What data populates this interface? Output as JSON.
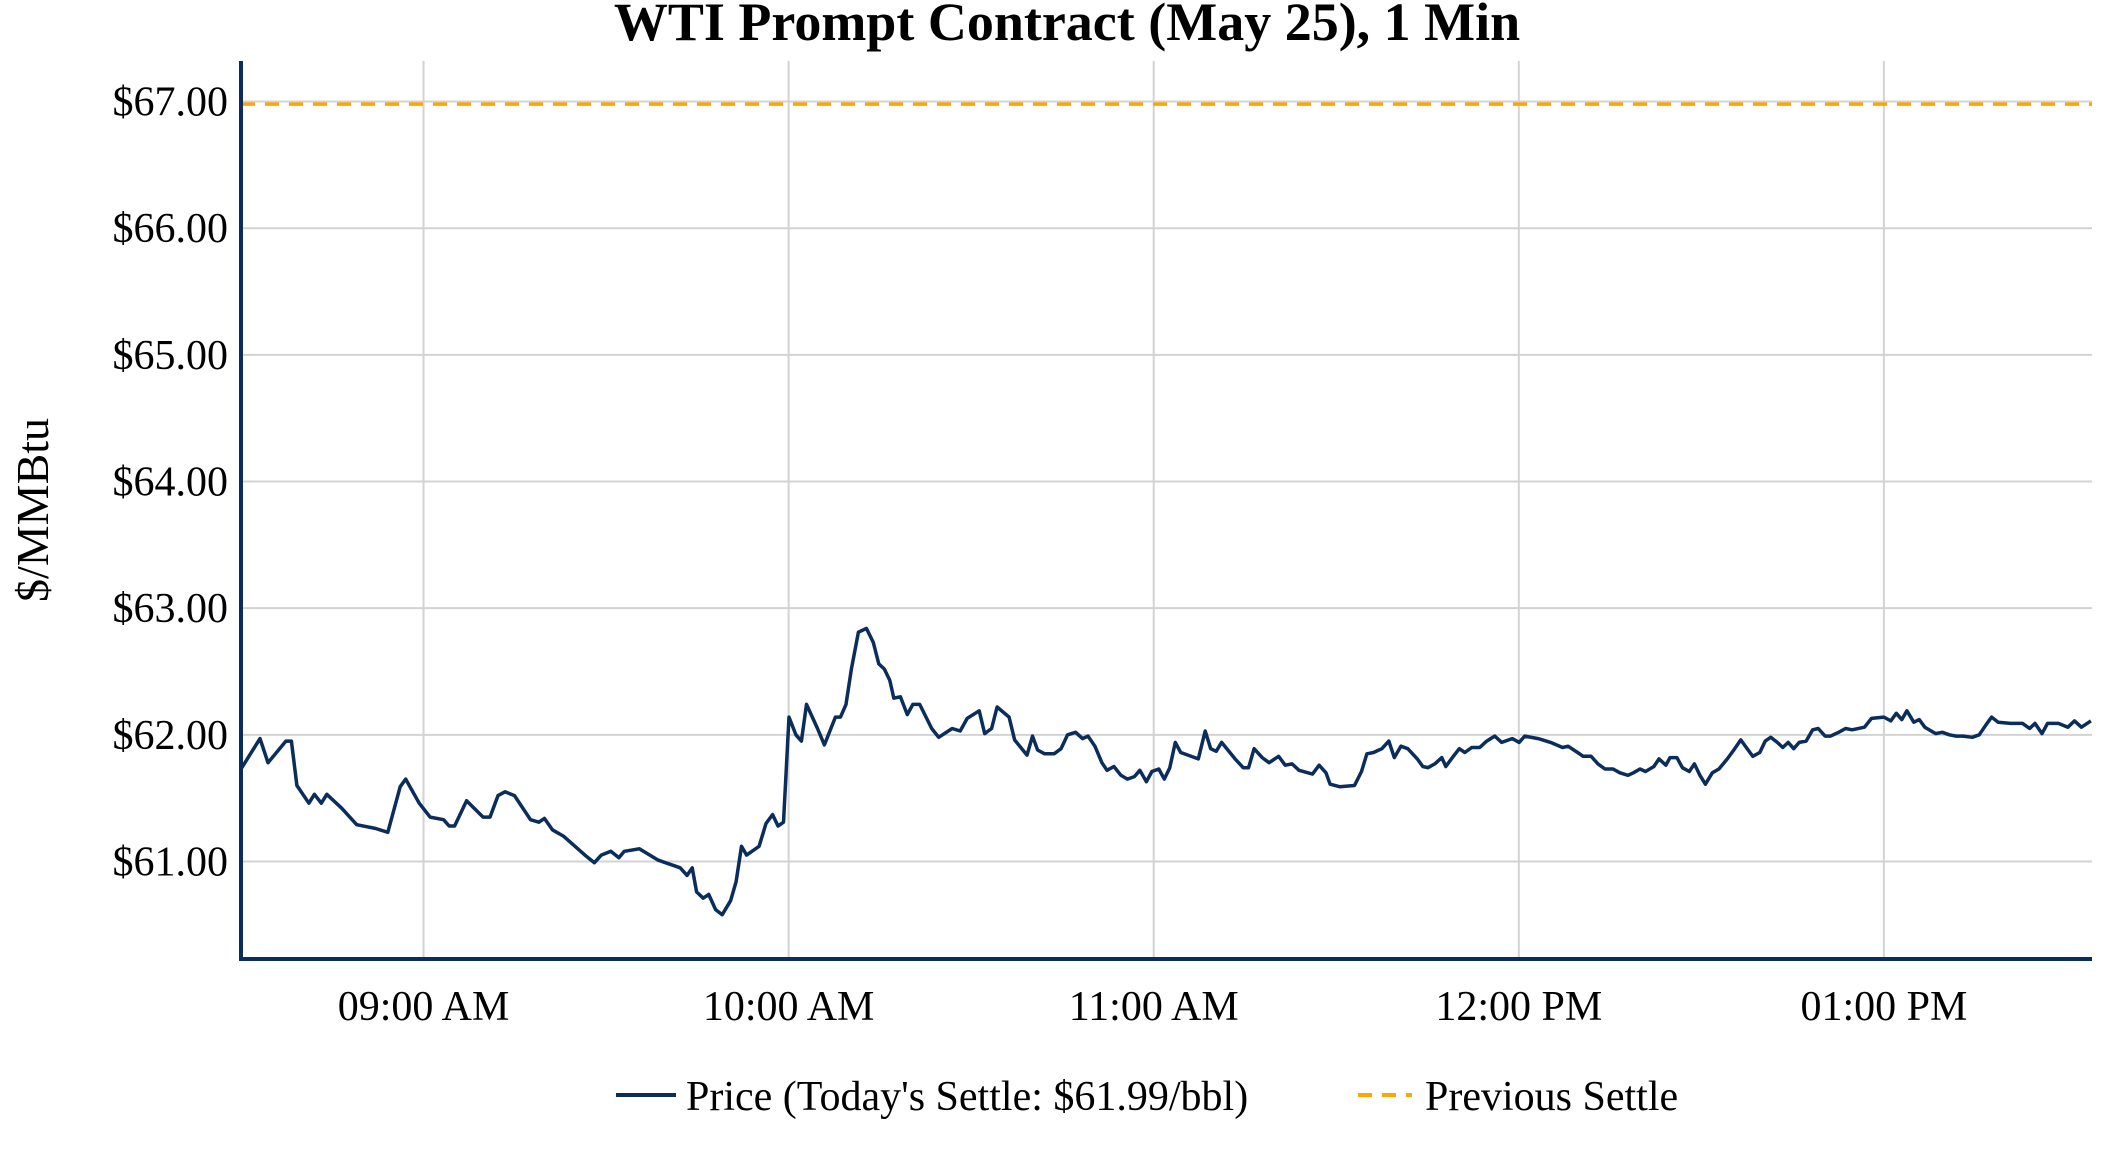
{
  "chart_data": {
    "type": "line",
    "title": "WTI Prompt Contract (May 25), 1 Min",
    "xlabel": "",
    "ylabel": "$/MMBtu",
    "x_unit": "hour of day (decimal)",
    "xlim": [
      8.5,
      13.57
    ],
    "ylim": [
      60.23,
      67.32
    ],
    "grid": true,
    "legend_position": "bottom",
    "x_ticks": [
      {
        "value": 9,
        "label": "09:00 AM"
      },
      {
        "value": 10,
        "label": "10:00 AM"
      },
      {
        "value": 11,
        "label": "11:00 AM"
      },
      {
        "value": 12,
        "label": "12:00 PM"
      },
      {
        "value": 13,
        "label": "01:00 PM"
      }
    ],
    "y_ticks": [
      {
        "value": 61,
        "label": "$61.00"
      },
      {
        "value": 62,
        "label": "$62.00"
      },
      {
        "value": 63,
        "label": "$63.00"
      },
      {
        "value": 64,
        "label": "$64.00"
      },
      {
        "value": 65,
        "label": "$65.00"
      },
      {
        "value": 66,
        "label": "$66.00"
      },
      {
        "value": 67,
        "label": "$67.00"
      }
    ],
    "series": [
      {
        "name": "Price (Today's Settle: $61.99/bbl)",
        "color": "#0b2d5b",
        "style": "solid",
        "points": [
          [
            8.5,
            61.73
          ],
          [
            8.552,
            61.97
          ],
          [
            8.574,
            61.78
          ],
          [
            8.623,
            61.95
          ],
          [
            8.638,
            61.95
          ],
          [
            8.653,
            61.6
          ],
          [
            8.686,
            61.46
          ],
          [
            8.701,
            61.53
          ],
          [
            8.72,
            61.46
          ],
          [
            8.735,
            61.53
          ],
          [
            8.776,
            61.42
          ],
          [
            8.817,
            61.29
          ],
          [
            8.869,
            61.26
          ],
          [
            8.902,
            61.23
          ],
          [
            8.936,
            61.59
          ],
          [
            8.951,
            61.65
          ],
          [
            8.988,
            61.46
          ],
          [
            9.018,
            61.35
          ],
          [
            9.055,
            61.33
          ],
          [
            9.07,
            61.28
          ],
          [
            9.085,
            61.28
          ],
          [
            9.118,
            61.48
          ],
          [
            9.163,
            61.35
          ],
          [
            9.182,
            61.35
          ],
          [
            9.204,
            61.52
          ],
          [
            9.223,
            61.55
          ],
          [
            9.249,
            61.52
          ],
          [
            9.293,
            61.33
          ],
          [
            9.316,
            61.31
          ],
          [
            9.331,
            61.34
          ],
          [
            9.353,
            61.25
          ],
          [
            9.383,
            61.2
          ],
          [
            9.442,
            61.05
          ],
          [
            9.468,
            60.99
          ],
          [
            9.487,
            61.05
          ],
          [
            9.513,
            61.08
          ],
          [
            9.535,
            61.03
          ],
          [
            9.55,
            61.08
          ],
          [
            9.591,
            61.1
          ],
          [
            9.643,
            61.01
          ],
          [
            9.703,
            60.95
          ],
          [
            9.722,
            60.89
          ],
          [
            9.736,
            60.95
          ],
          [
            9.748,
            60.76
          ],
          [
            9.766,
            60.71
          ],
          [
            9.781,
            60.74
          ],
          [
            9.8,
            60.62
          ],
          [
            9.818,
            60.58
          ],
          [
            9.841,
            60.69
          ],
          [
            9.856,
            60.84
          ],
          [
            9.871,
            61.12
          ],
          [
            9.885,
            61.05
          ],
          [
            9.919,
            61.12
          ],
          [
            9.938,
            61.3
          ],
          [
            9.956,
            61.37
          ],
          [
            9.971,
            61.28
          ],
          [
            9.986,
            61.31
          ],
          [
            10.001,
            62.14
          ],
          [
            10.02,
            62.0
          ],
          [
            10.035,
            61.95
          ],
          [
            10.049,
            62.24
          ],
          [
            10.079,
            62.05
          ],
          [
            10.098,
            61.92
          ],
          [
            10.128,
            62.14
          ],
          [
            10.142,
            62.14
          ],
          [
            10.157,
            62.24
          ],
          [
            10.172,
            62.52
          ],
          [
            10.191,
            62.81
          ],
          [
            10.213,
            62.84
          ],
          [
            10.232,
            62.73
          ],
          [
            10.247,
            62.56
          ],
          [
            10.262,
            62.52
          ],
          [
            10.277,
            62.43
          ],
          [
            10.288,
            62.29
          ],
          [
            10.306,
            62.3
          ],
          [
            10.325,
            62.16
          ],
          [
            10.34,
            62.24
          ],
          [
            10.359,
            62.24
          ],
          [
            10.373,
            62.16
          ],
          [
            10.392,
            62.05
          ],
          [
            10.411,
            61.98
          ],
          [
            10.448,
            62.05
          ],
          [
            10.47,
            62.03
          ],
          [
            10.489,
            62.13
          ],
          [
            10.522,
            62.19
          ],
          [
            10.537,
            62.01
          ],
          [
            10.556,
            62.05
          ],
          [
            10.571,
            62.22
          ],
          [
            10.604,
            62.14
          ],
          [
            10.619,
            61.96
          ],
          [
            10.653,
            61.84
          ],
          [
            10.668,
            61.99
          ],
          [
            10.682,
            61.88
          ],
          [
            10.701,
            61.85
          ],
          [
            10.727,
            61.85
          ],
          [
            10.746,
            61.89
          ],
          [
            10.764,
            62.0
          ],
          [
            10.786,
            62.02
          ],
          [
            10.805,
            61.97
          ],
          [
            10.82,
            61.99
          ],
          [
            10.839,
            61.91
          ],
          [
            10.858,
            61.78
          ],
          [
            10.872,
            61.72
          ],
          [
            10.891,
            61.75
          ],
          [
            10.91,
            61.68
          ],
          [
            10.928,
            61.65
          ],
          [
            10.947,
            61.67
          ],
          [
            10.962,
            61.72
          ],
          [
            10.98,
            61.63
          ],
          [
            10.995,
            61.71
          ],
          [
            11.014,
            61.73
          ],
          [
            11.029,
            61.65
          ],
          [
            11.044,
            61.74
          ],
          [
            11.059,
            61.94
          ],
          [
            11.074,
            61.86
          ],
          [
            11.122,
            61.81
          ],
          [
            11.141,
            62.03
          ],
          [
            11.156,
            61.89
          ],
          [
            11.171,
            61.87
          ],
          [
            11.186,
            61.94
          ],
          [
            11.223,
            61.81
          ],
          [
            11.245,
            61.74
          ],
          [
            11.26,
            61.74
          ],
          [
            11.275,
            61.89
          ],
          [
            11.297,
            61.82
          ],
          [
            11.316,
            61.78
          ],
          [
            11.342,
            61.83
          ],
          [
            11.36,
            61.76
          ],
          [
            11.379,
            61.77
          ],
          [
            11.398,
            61.72
          ],
          [
            11.435,
            61.69
          ],
          [
            11.453,
            61.76
          ],
          [
            11.472,
            61.7
          ],
          [
            11.483,
            61.61
          ],
          [
            11.509,
            61.59
          ],
          [
            11.55,
            61.6
          ],
          [
            11.569,
            61.71
          ],
          [
            11.584,
            61.85
          ],
          [
            11.602,
            61.86
          ],
          [
            11.625,
            61.89
          ],
          [
            11.644,
            61.95
          ],
          [
            11.659,
            61.82
          ],
          [
            11.677,
            61.91
          ],
          [
            11.696,
            61.89
          ],
          [
            11.722,
            61.81
          ],
          [
            11.737,
            61.75
          ],
          [
            11.751,
            61.74
          ],
          [
            11.77,
            61.77
          ],
          [
            11.789,
            61.82
          ],
          [
            11.8,
            61.75
          ],
          [
            11.818,
            61.82
          ],
          [
            11.837,
            61.89
          ],
          [
            11.852,
            61.86
          ],
          [
            11.871,
            61.9
          ],
          [
            11.893,
            61.9
          ],
          [
            11.912,
            61.95
          ],
          [
            11.934,
            61.99
          ],
          [
            11.953,
            61.94
          ],
          [
            11.982,
            61.97
          ],
          [
            12.001,
            61.94
          ],
          [
            12.016,
            61.99
          ],
          [
            12.053,
            61.97
          ],
          [
            12.087,
            61.94
          ],
          [
            12.12,
            61.9
          ],
          [
            12.135,
            61.91
          ],
          [
            12.161,
            61.86
          ],
          [
            12.176,
            61.83
          ],
          [
            12.198,
            61.83
          ],
          [
            12.217,
            61.77
          ],
          [
            12.236,
            61.73
          ],
          [
            12.258,
            61.73
          ],
          [
            12.277,
            61.7
          ],
          [
            12.299,
            61.68
          ],
          [
            12.314,
            61.7
          ],
          [
            12.332,
            61.73
          ],
          [
            12.347,
            61.71
          ],
          [
            12.37,
            61.75
          ],
          [
            12.384,
            61.81
          ],
          [
            12.403,
            61.76
          ],
          [
            12.414,
            61.82
          ],
          [
            12.433,
            61.82
          ],
          [
            12.448,
            61.74
          ],
          [
            12.467,
            61.71
          ],
          [
            12.481,
            61.77
          ],
          [
            12.496,
            61.68
          ],
          [
            12.511,
            61.61
          ],
          [
            12.53,
            61.7
          ],
          [
            12.548,
            61.73
          ],
          [
            12.571,
            61.81
          ],
          [
            12.589,
            61.88
          ],
          [
            12.608,
            61.96
          ],
          [
            12.623,
            61.9
          ],
          [
            12.641,
            61.83
          ],
          [
            12.66,
            61.86
          ],
          [
            12.675,
            61.95
          ],
          [
            12.69,
            61.98
          ],
          [
            12.708,
            61.94
          ],
          [
            12.723,
            61.9
          ],
          [
            12.738,
            61.94
          ],
          [
            12.753,
            61.89
          ],
          [
            12.768,
            61.94
          ],
          [
            12.787,
            61.95
          ],
          [
            12.805,
            62.04
          ],
          [
            12.82,
            62.05
          ],
          [
            12.839,
            61.99
          ],
          [
            12.854,
            61.99
          ],
          [
            12.876,
            62.02
          ],
          [
            12.895,
            62.05
          ],
          [
            12.913,
            62.04
          ],
          [
            12.947,
            62.06
          ],
          [
            12.966,
            62.13
          ],
          [
            13.0,
            62.14
          ],
          [
            13.019,
            62.11
          ],
          [
            13.034,
            62.17
          ],
          [
            13.049,
            62.12
          ],
          [
            13.063,
            62.19
          ],
          [
            13.082,
            62.1
          ],
          [
            13.097,
            62.12
          ],
          [
            13.112,
            62.06
          ],
          [
            13.142,
            62.01
          ],
          [
            13.16,
            62.02
          ],
          [
            13.179,
            62.0
          ],
          [
            13.198,
            61.99
          ],
          [
            13.216,
            61.99
          ],
          [
            13.242,
            61.98
          ],
          [
            13.261,
            62.0
          ],
          [
            13.28,
            62.08
          ],
          [
            13.295,
            62.14
          ],
          [
            13.313,
            62.1
          ],
          [
            13.347,
            62.09
          ],
          [
            13.38,
            62.09
          ],
          [
            13.399,
            62.05
          ],
          [
            13.414,
            62.09
          ],
          [
            13.433,
            62.01
          ],
          [
            13.448,
            62.09
          ],
          [
            13.478,
            62.09
          ],
          [
            13.504,
            62.06
          ],
          [
            13.522,
            62.11
          ],
          [
            13.541,
            62.06
          ],
          [
            13.567,
            62.11
          ]
        ]
      },
      {
        "name": "Previous Settle",
        "color": "#ffa500",
        "style": "dashed",
        "value": 66.98
      }
    ],
    "axis_color": "#0b2d5b"
  }
}
